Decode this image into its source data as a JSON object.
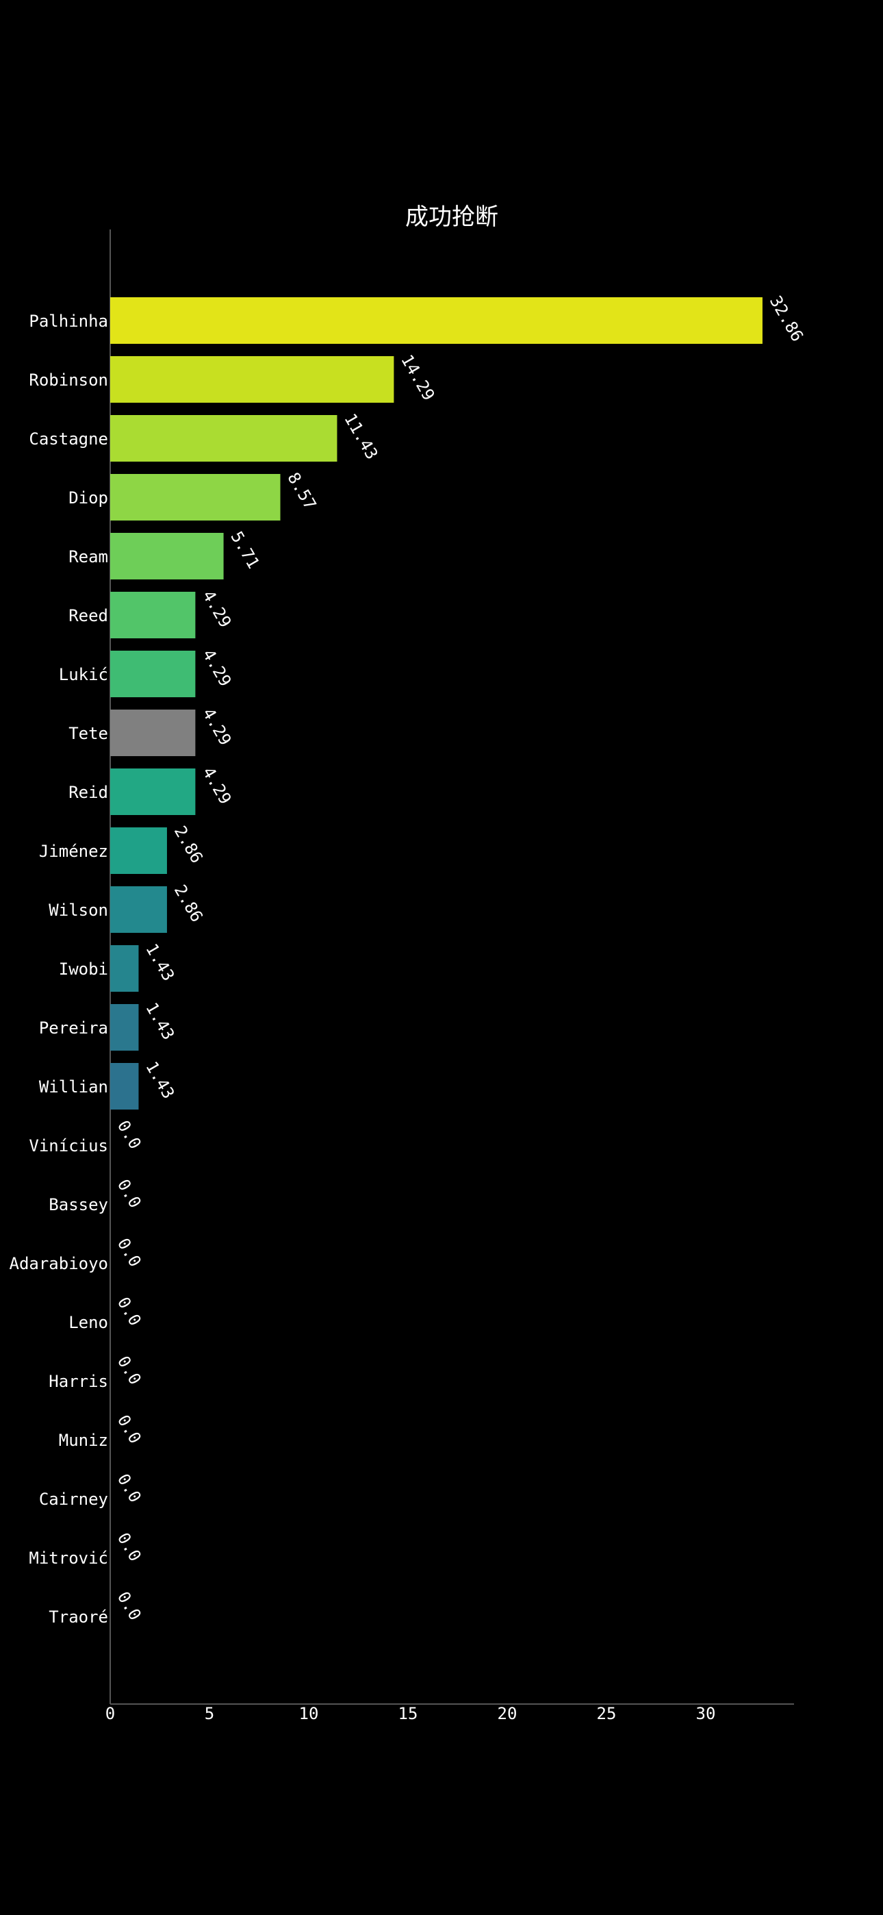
{
  "chart_data": {
    "type": "bar",
    "orientation": "horizontal",
    "title": "成功抢断",
    "xlabel": "",
    "ylabel": "",
    "xlim": [
      0,
      34.5
    ],
    "xticks": [
      0,
      5,
      10,
      15,
      20,
      25,
      30
    ],
    "grid": false,
    "legend": "none",
    "background": "#000000",
    "categories": [
      "Palhinha",
      "Robinson",
      "Castagne",
      "Diop",
      "Ream",
      "Reed",
      "Lukić",
      "Tete",
      "Reid",
      "Jiménez",
      "Wilson",
      "Iwobi",
      "Pereira",
      "Willian",
      "Vinícius",
      "Bassey",
      "Adarabioyo",
      "Leno",
      "Harris",
      "Muniz",
      "Cairney",
      "Mitrović",
      "Traoré"
    ],
    "values": [
      32.86,
      14.29,
      11.43,
      8.57,
      5.71,
      4.29,
      4.29,
      4.29,
      4.29,
      2.86,
      2.86,
      1.43,
      1.43,
      1.43,
      0.0,
      0.0,
      0.0,
      0.0,
      0.0,
      0.0,
      0.0,
      0.0,
      0.0
    ],
    "value_labels": [
      "32.86",
      "14.29",
      "11.43",
      "8.57",
      "5.71",
      "4.29",
      "4.29",
      "4.29",
      "4.29",
      "2.86",
      "2.86",
      "1.43",
      "1.43",
      "1.43",
      "0.0",
      "0.0",
      "0.0",
      "0.0",
      "0.0",
      "0.0",
      "0.0",
      "0.0",
      "0.0"
    ],
    "colors": [
      "#e2e418",
      "#c8e020",
      "#aadc32",
      "#8ed645",
      "#6ece58",
      "#52c569",
      "#3fbc73",
      "#808080",
      "#22a884",
      "#1fa188",
      "#23898e",
      "#25858e",
      "#2a788e",
      "#2c728e",
      "#39568c",
      "#404688",
      "#443983",
      "#482677",
      "#481f70",
      "#481467",
      "#470d60",
      "#46085c",
      "#440154"
    ]
  }
}
